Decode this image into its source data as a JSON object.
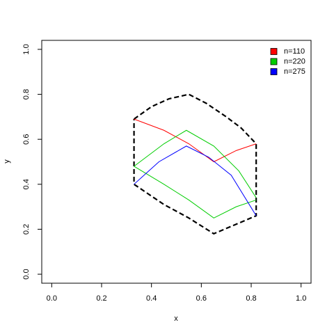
{
  "chart_data": {
    "type": "line",
    "xlabel": "x",
    "ylabel": "y",
    "xlim": [
      -0.04,
      1.04
    ],
    "ylim": [
      -0.04,
      1.04
    ],
    "xticks": [
      {
        "value": 0,
        "label": "0.0"
      },
      0.2,
      0.4,
      0.6,
      0.8,
      {
        "value": 1,
        "label": "1.0"
      }
    ],
    "yticks": [
      {
        "value": 0,
        "label": "0.0"
      },
      0.2,
      0.4,
      0.6,
      0.8,
      {
        "value": 1,
        "label": "1.0"
      }
    ],
    "legend": "topright",
    "boundary": {
      "color": "#000000",
      "dashed": true,
      "x": [
        0.33,
        0.4,
        0.47,
        0.55,
        0.62,
        0.7,
        0.76,
        0.82,
        0.82,
        0.65,
        0.55,
        0.45,
        0.33,
        0.33
      ],
      "y": [
        0.69,
        0.745,
        0.78,
        0.8,
        0.76,
        0.7,
        0.65,
        0.58,
        0.26,
        0.18,
        0.25,
        0.31,
        0.4,
        0.69
      ]
    },
    "series": [
      {
        "name": "n=110",
        "color": "#ff0000",
        "x": [
          0.33,
          0.45,
          0.55,
          0.65,
          0.74,
          0.82
        ],
        "values": [
          0.69,
          0.64,
          0.58,
          0.5,
          0.55,
          0.58
        ]
      },
      {
        "name": "n=220",
        "color": "#00cd00",
        "x": [
          0.33,
          0.45,
          0.54,
          0.65,
          0.75,
          0.82,
          null,
          0.33,
          0.45,
          0.55,
          0.65,
          0.74,
          0.82
        ],
        "values": [
          0.48,
          0.58,
          0.64,
          0.57,
          0.46,
          0.34,
          null,
          0.48,
          0.4,
          0.33,
          0.25,
          0.3,
          0.33
        ]
      },
      {
        "name": "n=275",
        "color": "#0000ff",
        "x": [
          0.33,
          0.43,
          0.54,
          0.63,
          0.72,
          0.82
        ],
        "values": [
          0.4,
          0.5,
          0.57,
          0.52,
          0.44,
          0.26
        ]
      }
    ]
  }
}
